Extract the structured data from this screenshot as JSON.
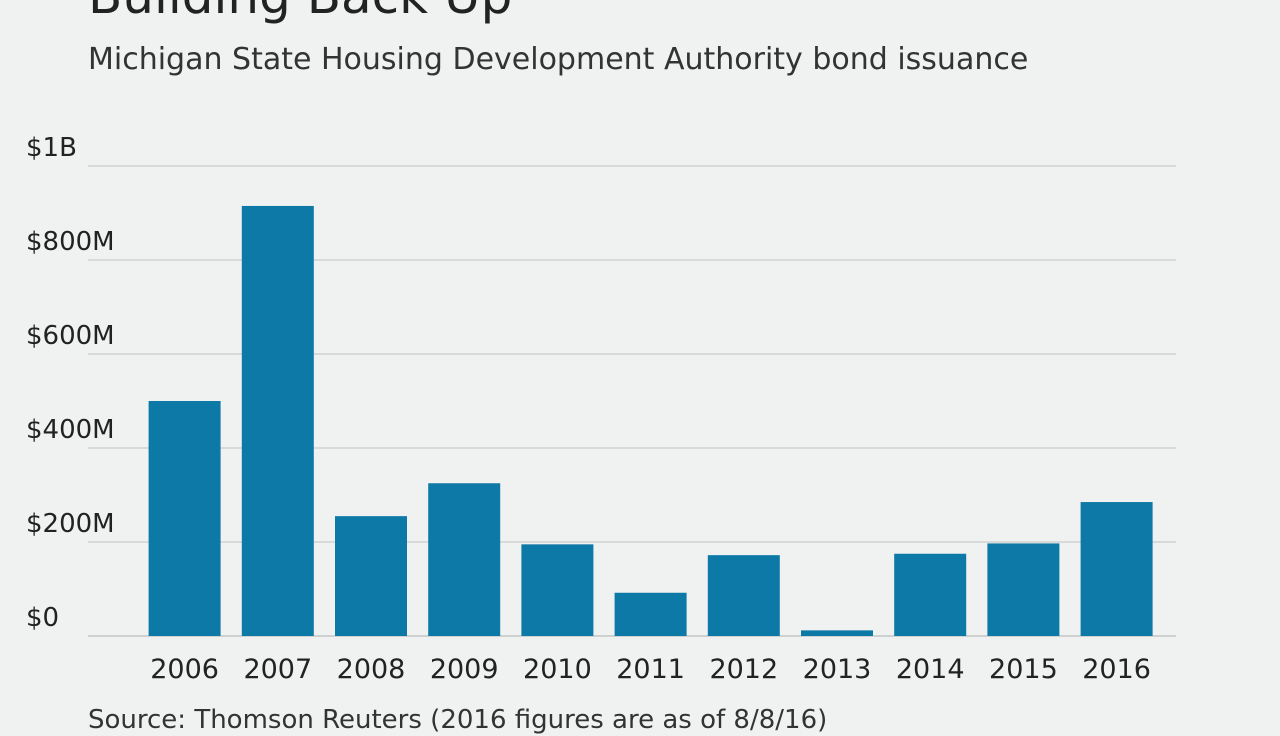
{
  "header": {
    "title": "Building Back Up",
    "subtitle": "Michigan State Housing Development Authority bond issuance"
  },
  "footer": {
    "source": "Source: Thomson Reuters (2016 figures are as of 8/8/16)"
  },
  "colors": {
    "background": "#f0f1f1",
    "bar": "#0d79a7",
    "grid": "#cfd1d1",
    "text": "#222222"
  },
  "chart_data": {
    "type": "bar",
    "categories": [
      "2006",
      "2007",
      "2008",
      "2009",
      "2010",
      "2011",
      "2012",
      "2013",
      "2014",
      "2015",
      "2016"
    ],
    "values": [
      500,
      915,
      255,
      325,
      195,
      92,
      172,
      12,
      175,
      197,
      285
    ],
    "units": "millions USD",
    "ylim": [
      0,
      1000
    ],
    "yticks": [
      {
        "value": 0,
        "label": "$0"
      },
      {
        "value": 200,
        "label": "$200M"
      },
      {
        "value": 400,
        "label": "$400M"
      },
      {
        "value": 600,
        "label": "$600M"
      },
      {
        "value": 800,
        "label": "$800M"
      },
      {
        "value": 1000,
        "label": "$1B"
      }
    ],
    "grid": true,
    "legend": "none"
  }
}
